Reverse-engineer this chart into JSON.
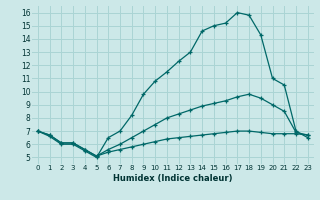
{
  "xlabel": "Humidex (Indice chaleur)",
  "bg_color": "#cce8e8",
  "grid_color": "#aad4d4",
  "line_color": "#006868",
  "xlim": [
    -0.5,
    23.5
  ],
  "ylim": [
    4.5,
    16.5
  ],
  "xticks": [
    0,
    1,
    2,
    3,
    4,
    5,
    6,
    7,
    8,
    9,
    10,
    11,
    12,
    13,
    14,
    15,
    16,
    17,
    18,
    19,
    20,
    21,
    22,
    23
  ],
  "yticks": [
    5,
    6,
    7,
    8,
    9,
    10,
    11,
    12,
    13,
    14,
    15,
    16
  ],
  "line1_x": [
    0,
    1,
    2,
    3,
    4,
    5,
    6,
    7,
    8,
    9,
    10,
    11,
    12,
    13,
    14,
    15,
    16,
    17,
    18,
    19,
    20,
    21,
    22,
    23
  ],
  "line1_y": [
    7,
    6.6,
    6.0,
    6.0,
    5.5,
    5.0,
    6.5,
    7.0,
    8.2,
    9.8,
    10.8,
    11.5,
    12.3,
    13.0,
    14.6,
    15.0,
    15.2,
    16.0,
    15.8,
    14.3,
    11.0,
    10.5,
    7.0,
    6.5
  ],
  "line2_x": [
    0,
    1,
    2,
    3,
    4,
    5,
    6,
    7,
    8,
    9,
    10,
    11,
    12,
    13,
    14,
    15,
    16,
    17,
    18,
    19,
    20,
    21,
    22,
    23
  ],
  "line2_y": [
    7,
    6.7,
    6.1,
    6.1,
    5.6,
    5.1,
    5.4,
    5.6,
    5.8,
    6.0,
    6.2,
    6.4,
    6.5,
    6.6,
    6.7,
    6.8,
    6.9,
    7.0,
    7.0,
    6.9,
    6.8,
    6.8,
    6.8,
    6.7
  ],
  "line3_x": [
    0,
    1,
    2,
    3,
    4,
    5,
    6,
    7,
    8,
    9,
    10,
    11,
    12,
    13,
    14,
    15,
    16,
    17,
    18,
    19,
    20,
    21,
    22,
    23
  ],
  "line3_y": [
    7,
    6.7,
    6.1,
    6.1,
    5.6,
    5.1,
    5.6,
    6.0,
    6.5,
    7.0,
    7.5,
    8.0,
    8.3,
    8.6,
    8.9,
    9.1,
    9.3,
    9.6,
    9.8,
    9.5,
    9.0,
    8.5,
    6.9,
    6.7
  ]
}
